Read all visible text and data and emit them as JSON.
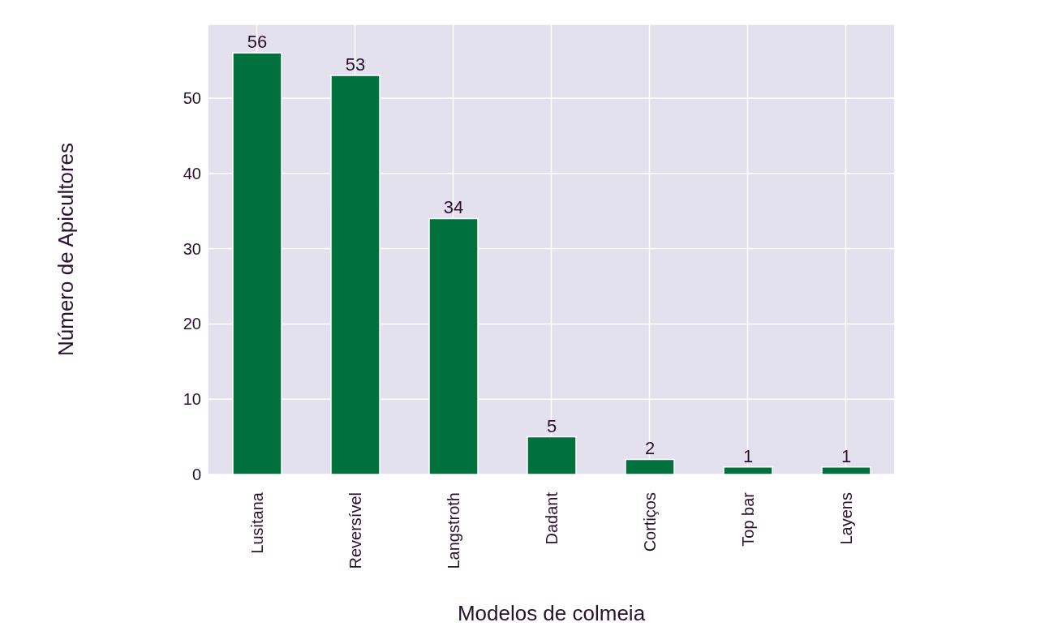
{
  "chart_data": {
    "type": "bar",
    "xlabel": "Modelos de colmeia",
    "ylabel": "Número de Apicultores",
    "categories": [
      "Lusitana",
      "Reversível",
      "Langstroth",
      "Dadant",
      "Cortiços",
      "Top bar",
      "Layens"
    ],
    "values": [
      56,
      53,
      34,
      5,
      2,
      1,
      1
    ],
    "color": "#00703c",
    "ylim": [
      0,
      59.8
    ],
    "yticks": [
      0,
      10,
      20,
      30,
      40,
      50
    ],
    "grid": true,
    "data_labels": true
  }
}
